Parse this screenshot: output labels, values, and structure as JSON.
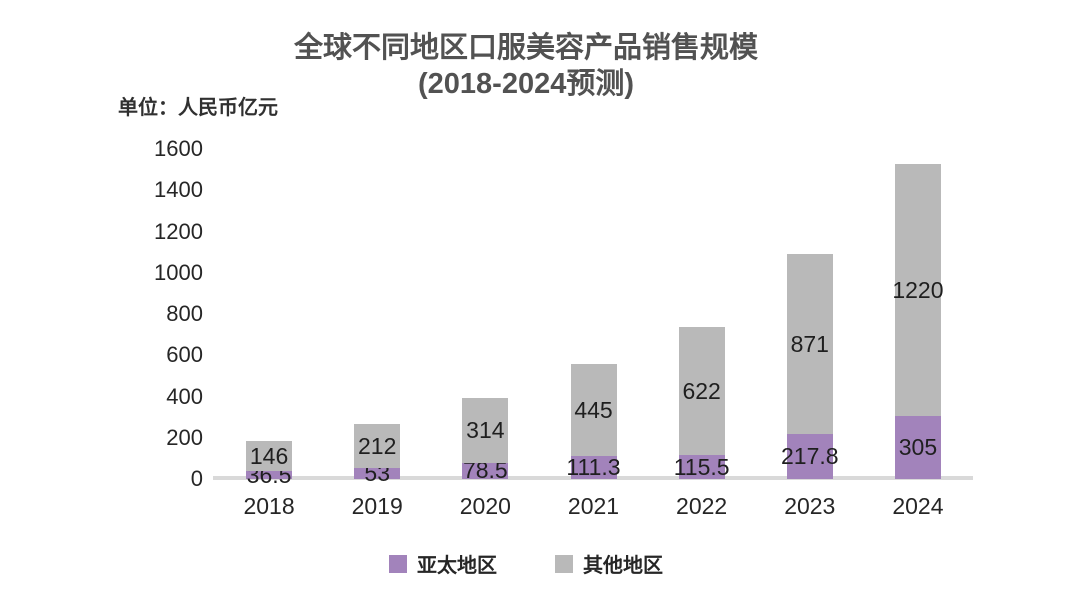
{
  "title": {
    "line1": "全球不同地区口服美容产品销售规模",
    "line2": "(2018-2024预测)"
  },
  "unit_label": "单位：人民币亿元",
  "chart_data": {
    "type": "bar",
    "stacked": true,
    "title": "全球不同地区口服美容产品销售规模(2018-2024预测)",
    "ylabel": "单位：人民币亿元",
    "categories": [
      "2018",
      "2019",
      "2020",
      "2021",
      "2022",
      "2023",
      "2024"
    ],
    "series": [
      {
        "name": "亚太地区",
        "color": "#a283bb",
        "values": [
          36.5,
          53,
          78.5,
          111.3,
          115.5,
          217.8,
          305
        ]
      },
      {
        "name": "其他地区",
        "color": "#b9b9b9",
        "values": [
          146,
          212,
          314,
          445,
          622,
          871,
          1220
        ]
      }
    ],
    "ylim": [
      0,
      1600
    ],
    "ytick_step": 200,
    "yticks": [
      0,
      200,
      400,
      600,
      800,
      1000,
      1200,
      1400,
      1600
    ],
    "grid": false,
    "value_labels": true,
    "legend_position": "bottom"
  },
  "colors": {
    "axis_line": "#d9d9d9",
    "tick_text": "#262626",
    "value_label_text": "#1f1f1f",
    "title_text": "#525252"
  }
}
